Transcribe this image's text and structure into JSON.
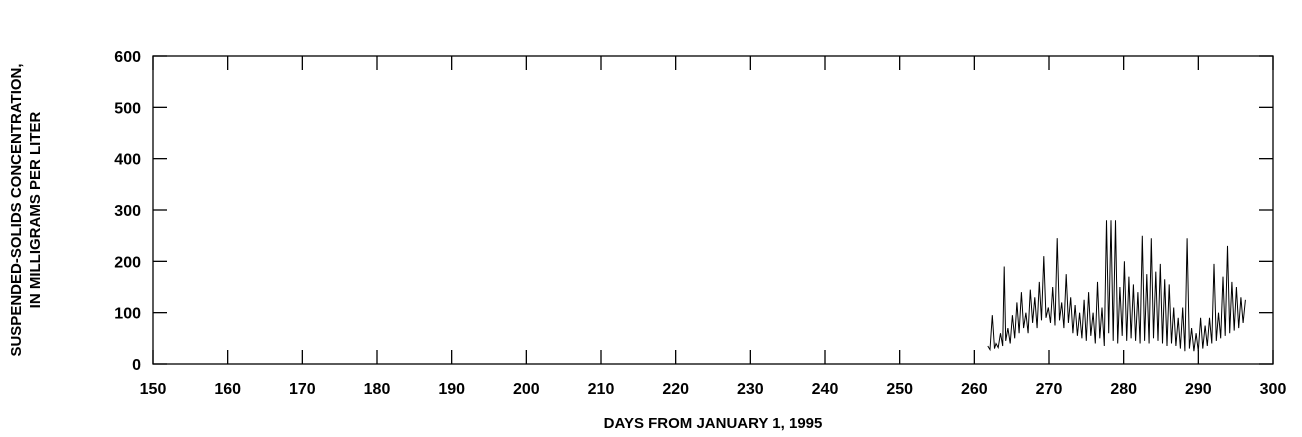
{
  "chart_data": {
    "type": "line",
    "title": "",
    "xlabel": "DAYS FROM JANUARY 1, 1995",
    "ylabel_lines": [
      "SUSPENDED-SOLIDS CONCENTRATION,",
      "IN MILLIGRAMS PER LITER"
    ],
    "xlim": [
      150,
      300
    ],
    "ylim": [
      0,
      600
    ],
    "x_ticks": [
      150,
      160,
      170,
      180,
      190,
      200,
      210,
      220,
      230,
      240,
      250,
      260,
      270,
      280,
      290,
      300
    ],
    "y_ticks": [
      0,
      100,
      200,
      300,
      400,
      500,
      600
    ],
    "grid": false,
    "line_color": "#000000",
    "series": [
      {
        "x": [
          261.8,
          262.1,
          262.4,
          262.7,
          262.9,
          263.2,
          263.5,
          263.8,
          264.0,
          264.2,
          264.5,
          264.8,
          265.1,
          265.4,
          265.7,
          266.0,
          266.3,
          266.6,
          266.9,
          267.2,
          267.5,
          267.8,
          268.1,
          268.4,
          268.7,
          269.0,
          269.3,
          269.6,
          269.9,
          270.2,
          270.5,
          270.8,
          271.1,
          271.4,
          271.7,
          272.0,
          272.3,
          272.6,
          272.9,
          273.2,
          273.5,
          273.8,
          274.1,
          274.4,
          274.7,
          275.0,
          275.3,
          275.6,
          275.9,
          276.2,
          276.5,
          276.8,
          277.1,
          277.4,
          277.7,
          278.0,
          278.3,
          278.6,
          278.9,
          279.2,
          279.5,
          279.8,
          280.1,
          280.4,
          280.7,
          281.0,
          281.3,
          281.6,
          281.9,
          282.2,
          282.5,
          282.8,
          283.1,
          283.4,
          283.7,
          284.0,
          284.3,
          284.6,
          284.9,
          285.2,
          285.5,
          285.8,
          286.1,
          286.4,
          286.7,
          287.0,
          287.3,
          287.6,
          287.9,
          288.2,
          288.5,
          288.8,
          289.1,
          289.4,
          289.7,
          290.0,
          290.3,
          290.6,
          290.9,
          291.2,
          291.5,
          291.8,
          292.1,
          292.4,
          292.7,
          293.0,
          293.3,
          293.6,
          293.9,
          294.2,
          294.5,
          294.8,
          295.1,
          295.4,
          295.7,
          296.0,
          296.3
        ],
        "y": [
          35,
          28,
          95,
          30,
          40,
          32,
          60,
          35,
          190,
          45,
          70,
          40,
          95,
          50,
          120,
          60,
          140,
          70,
          100,
          60,
          145,
          80,
          130,
          70,
          160,
          85,
          210,
          90,
          110,
          80,
          150,
          75,
          245,
          85,
          120,
          70,
          175,
          80,
          130,
          60,
          115,
          55,
          100,
          50,
          125,
          45,
          140,
          55,
          100,
          40,
          160,
          50,
          110,
          35,
          280,
          60,
          280,
          45,
          280,
          40,
          150,
          55,
          200,
          45,
          170,
          50,
          155,
          45,
          140,
          40,
          250,
          45,
          175,
          40,
          245,
          50,
          180,
          45,
          195,
          40,
          165,
          35,
          155,
          40,
          110,
          35,
          90,
          30,
          110,
          25,
          245,
          30,
          70,
          25,
          60,
          25,
          90,
          30,
          75,
          35,
          90,
          40,
          195,
          45,
          100,
          50,
          170,
          55,
          230,
          60,
          160,
          65,
          150,
          70,
          130,
          80,
          125
        ]
      }
    ]
  }
}
